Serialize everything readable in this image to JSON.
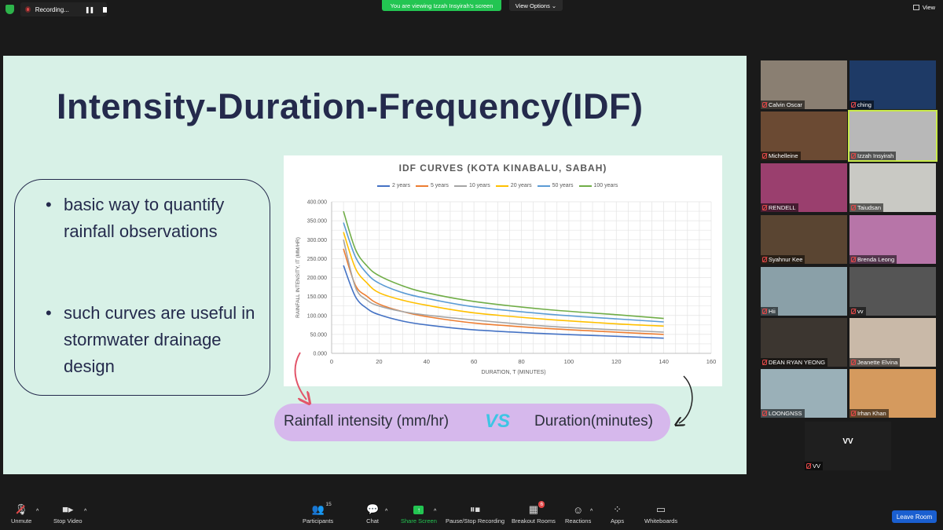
{
  "topbar": {
    "recording_label": "Recording...",
    "pause_glyph": "❚❚",
    "viewing_banner": "You are viewing Izzah Insyirah's screen",
    "view_options": "View Options ⌄",
    "view_label": "View"
  },
  "slide": {
    "title": "Intensity-Duration-Frequency(IDF)",
    "bullets": [
      "basic way to quantify rainfall observations",
      "such curves are useful in stormwater drainage design"
    ],
    "bullet_glyph": "•",
    "compare_left": "Rainfall intensity (mm/hr)",
    "compare_vs": "VS",
    "compare_right": "Duration(minutes)"
  },
  "chart_data": {
    "type": "line",
    "title": "IDF CURVES (KOTA KINABALU, SABAH)",
    "xlabel": "DURATION, T (MINUTES)",
    "ylabel": "RAINFALL INTENSITY, IT (MM/HR)",
    "xlim": [
      0,
      160
    ],
    "ylim": [
      0,
      400
    ],
    "x_ticks": [
      "0",
      "20",
      "40",
      "60",
      "80",
      "100",
      "120",
      "140",
      "160"
    ],
    "y_ticks": [
      "0.000",
      "50.000",
      "100.000",
      "150.000",
      "200.000",
      "250.000",
      "300.000",
      "350.000",
      "400.000"
    ],
    "grid": true,
    "legend_position": "top",
    "x": [
      5,
      10,
      15,
      20,
      30,
      40,
      60,
      90,
      120,
      140
    ],
    "series": [
      {
        "name": "2 years",
        "color": "#4472c4",
        "values": [
          232,
          150,
          118,
          102,
          85,
          75,
          62,
          52,
          45,
          40
        ]
      },
      {
        "name": "5 years",
        "color": "#ed7d31",
        "values": [
          276,
          180,
          150,
          130,
          110,
          97,
          80,
          66,
          56,
          50
        ]
      },
      {
        "name": "10 years",
        "color": "#a5a5a5",
        "values": [
          300,
          175,
          140,
          125,
          110,
          101,
          88,
          72,
          62,
          56
        ]
      },
      {
        "name": "20 years",
        "color": "#ffc000",
        "values": [
          320,
          225,
          185,
          160,
          140,
          127,
          107,
          90,
          78,
          72
        ]
      },
      {
        "name": "50 years",
        "color": "#5b9bd5",
        "values": [
          345,
          255,
          210,
          185,
          160,
          145,
          123,
          104,
          91,
          83
        ]
      },
      {
        "name": "100 years",
        "color": "#70ad47",
        "values": [
          375,
          275,
          230,
          205,
          178,
          160,
          137,
          116,
          102,
          92
        ]
      }
    ]
  },
  "participants": [
    {
      "name": "Calvin Oscar",
      "bg": "#8a7f72"
    },
    {
      "name": "ching",
      "bg": "#1e3a66"
    },
    {
      "name": "Michelleine",
      "bg": "#6b4a33"
    },
    {
      "name": "Izzah Insyirah",
      "bg": "#b8b8b8"
    },
    {
      "name": "RENDELL",
      "bg": "#9a3f6e"
    },
    {
      "name": "Taiudsan",
      "bg": "#c9c9c4"
    },
    {
      "name": "Syahnur Kee",
      "bg": "#5a4532"
    },
    {
      "name": "Brenda Leong",
      "bg": "#b775a8"
    },
    {
      "name": "Hii",
      "bg": "#8aa0a8"
    },
    {
      "name": "vv",
      "bg": "#555555"
    },
    {
      "name": "DEAN RYAN YEONG",
      "bg": "#3c3630"
    },
    {
      "name": "Jeanette Elvina",
      "bg": "#c9b9a8"
    },
    {
      "name": "LOONGNSS",
      "bg": "#9ab0b8"
    },
    {
      "name": "Irhan Khan",
      "bg": "#d59a5e"
    },
    {
      "name": "VV",
      "bg": "#1f1f1f",
      "caption": "VV"
    }
  ],
  "toolbar": {
    "unmute": "Unmute",
    "stop_video": "Stop Video",
    "participants": "Participants",
    "participants_count": "15",
    "chat": "Chat",
    "share_screen": "Share Screen",
    "pause_recording": "Pause/Stop Recording",
    "breakout_rooms": "Breakout Rooms",
    "breakout_badge": "6",
    "reactions": "Reactions",
    "apps": "Apps",
    "whiteboards": "Whiteboards",
    "leave": "Leave Room"
  }
}
